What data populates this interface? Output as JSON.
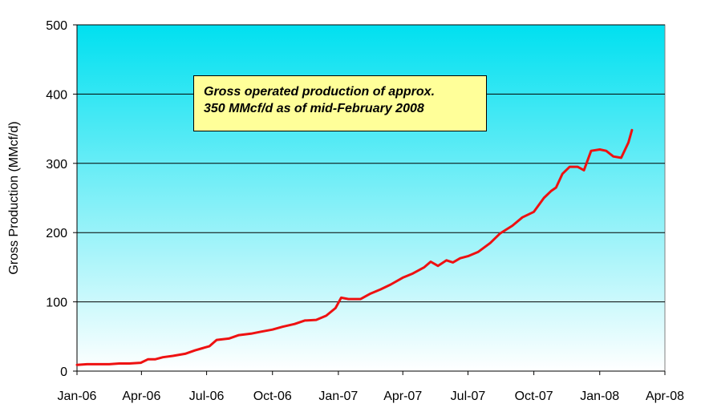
{
  "chart_data": {
    "type": "line",
    "title": "",
    "xlabel": "",
    "ylabel": "Gross Production (MMcf/d)",
    "ylim": [
      0,
      500
    ],
    "yticks": [
      0,
      100,
      200,
      300,
      400,
      500
    ],
    "xticks": [
      "Jan-06",
      "Apr-06",
      "Jul-06",
      "Oct-06",
      "Jan-07",
      "Apr-07",
      "Jul-07",
      "Oct-07",
      "Jan-08",
      "Apr-08"
    ],
    "grid": "horizontal",
    "background_gradient": [
      "#00e0f0",
      "#ffffff"
    ],
    "line_color": "#ee1111",
    "annotation": [
      "Gross operated production of approx.",
      "350 MMcf/d as of mid-February 2008"
    ],
    "series": [
      {
        "x": [
          "2006-01-01",
          "2006-01-15",
          "2006-02-01",
          "2006-02-15",
          "2006-03-01",
          "2006-03-15",
          "2006-03-31",
          "2006-04-10",
          "2006-04-20",
          "2006-05-01",
          "2006-05-15",
          "2006-06-01",
          "2006-06-15",
          "2006-06-25",
          "2006-07-05",
          "2006-07-15",
          "2006-08-01",
          "2006-08-15",
          "2006-09-01",
          "2006-09-15",
          "2006-10-01",
          "2006-10-15",
          "2006-11-01",
          "2006-11-15",
          "2006-12-01",
          "2006-12-15",
          "2006-12-28",
          "2007-01-05",
          "2007-01-15",
          "2007-02-01",
          "2007-02-15",
          "2007-03-01",
          "2007-03-15",
          "2007-04-01",
          "2007-04-15",
          "2007-05-01",
          "2007-05-10",
          "2007-05-20",
          "2007-06-01",
          "2007-06-10",
          "2007-06-20",
          "2007-07-01",
          "2007-07-15",
          "2007-08-01",
          "2007-08-15",
          "2007-09-01",
          "2007-09-15",
          "2007-10-01",
          "2007-10-15",
          "2007-10-25",
          "2007-11-01",
          "2007-11-10",
          "2007-11-20",
          "2007-12-01",
          "2007-12-10",
          "2007-12-20",
          "2008-01-01",
          "2008-01-10",
          "2008-01-20",
          "2008-01-31",
          "2008-02-10",
          "2008-02-15"
        ],
        "values": [
          9,
          10,
          10,
          10,
          11,
          11,
          12,
          17,
          17,
          20,
          22,
          25,
          30,
          33,
          36,
          45,
          47,
          52,
          54,
          57,
          60,
          64,
          68,
          73,
          74,
          80,
          91,
          106,
          104,
          104,
          112,
          118,
          125,
          135,
          141,
          150,
          158,
          152,
          160,
          157,
          163,
          166,
          172,
          185,
          199,
          210,
          222,
          230,
          250,
          260,
          265,
          285,
          295,
          295,
          290,
          318,
          320,
          318,
          310,
          308,
          330,
          348
        ]
      }
    ]
  }
}
